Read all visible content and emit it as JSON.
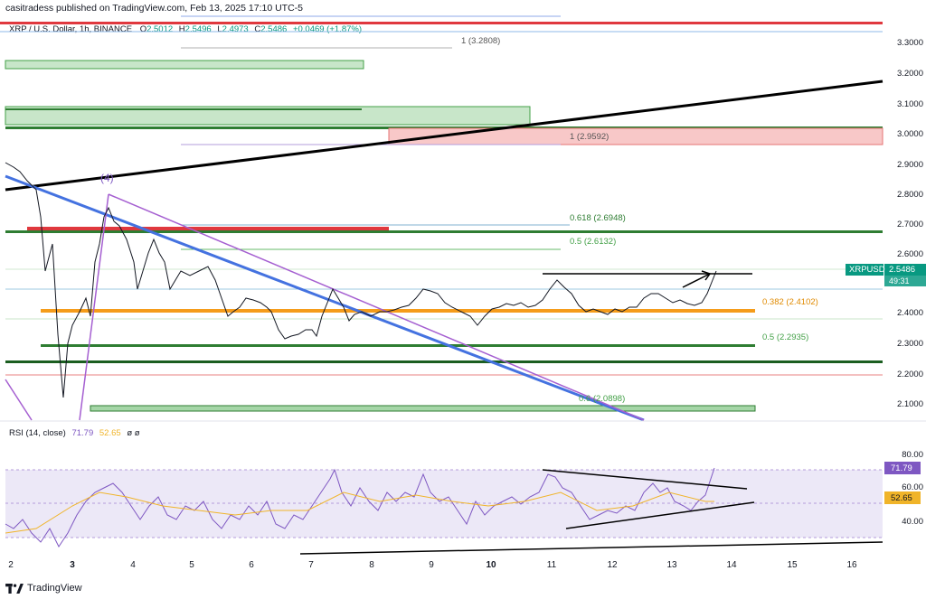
{
  "header": {
    "publisher": "casitradess published on TradingView.com, Feb 13, 2025 17:10 UTC-5"
  },
  "legend": {
    "symbol": "XRP / U.S. Dollar, 1h, BINANCE",
    "o_label": "O",
    "o_val": "2.5012",
    "h_label": "H",
    "h_val": "2.5496",
    "l_label": "L",
    "l_val": "2.4973",
    "c_label": "C",
    "c_val": "2.5486",
    "change": "+0.0469 (+1.87%)"
  },
  "price_axis": [
    "3.3000",
    "3.2000",
    "3.1000",
    "3.0000",
    "2.9000",
    "2.8000",
    "2.7000",
    "2.6000",
    "2.4000",
    "2.3000",
    "2.2000",
    "2.1000"
  ],
  "price_tag": {
    "symbol": "XRPUSD",
    "price": "2.5486",
    "countdown": "49:31"
  },
  "fib_labels": {
    "f1a": "1 (3.2808)",
    "f1b": "1 (2.9592)",
    "f618": "0.618 (2.6948)",
    "f5a": "0.5 (2.6132)",
    "f382": "0.382 (2.4102)",
    "f5b": "0.5 (2.2935)",
    "f6": "0.6 (2.0898)"
  },
  "wave_label": "(4)",
  "rsi": {
    "label": "RSI (14, close)",
    "value1": "71.79",
    "value2": "52.65",
    "suffix": "ø ø",
    "axis": [
      "80.00",
      "60.00",
      "40.00"
    ],
    "tag1": "71.79",
    "tag2": "52.65"
  },
  "time_axis": [
    "2",
    "3",
    "4",
    "5",
    "6",
    "7",
    "8",
    "9",
    "10",
    "11",
    "12",
    "13",
    "14",
    "15",
    "16"
  ],
  "footer": {
    "brand": "TradingView"
  },
  "colors": {
    "green": "#388e3c",
    "red": "#e57373",
    "orange": "#f59c1a",
    "blue": "#4472e0",
    "purple": "#a55fd1",
    "rsi_line": "#7e57c2",
    "rsi_ma": "#f0b429",
    "up": "#089981",
    "down": "#f23645"
  }
}
